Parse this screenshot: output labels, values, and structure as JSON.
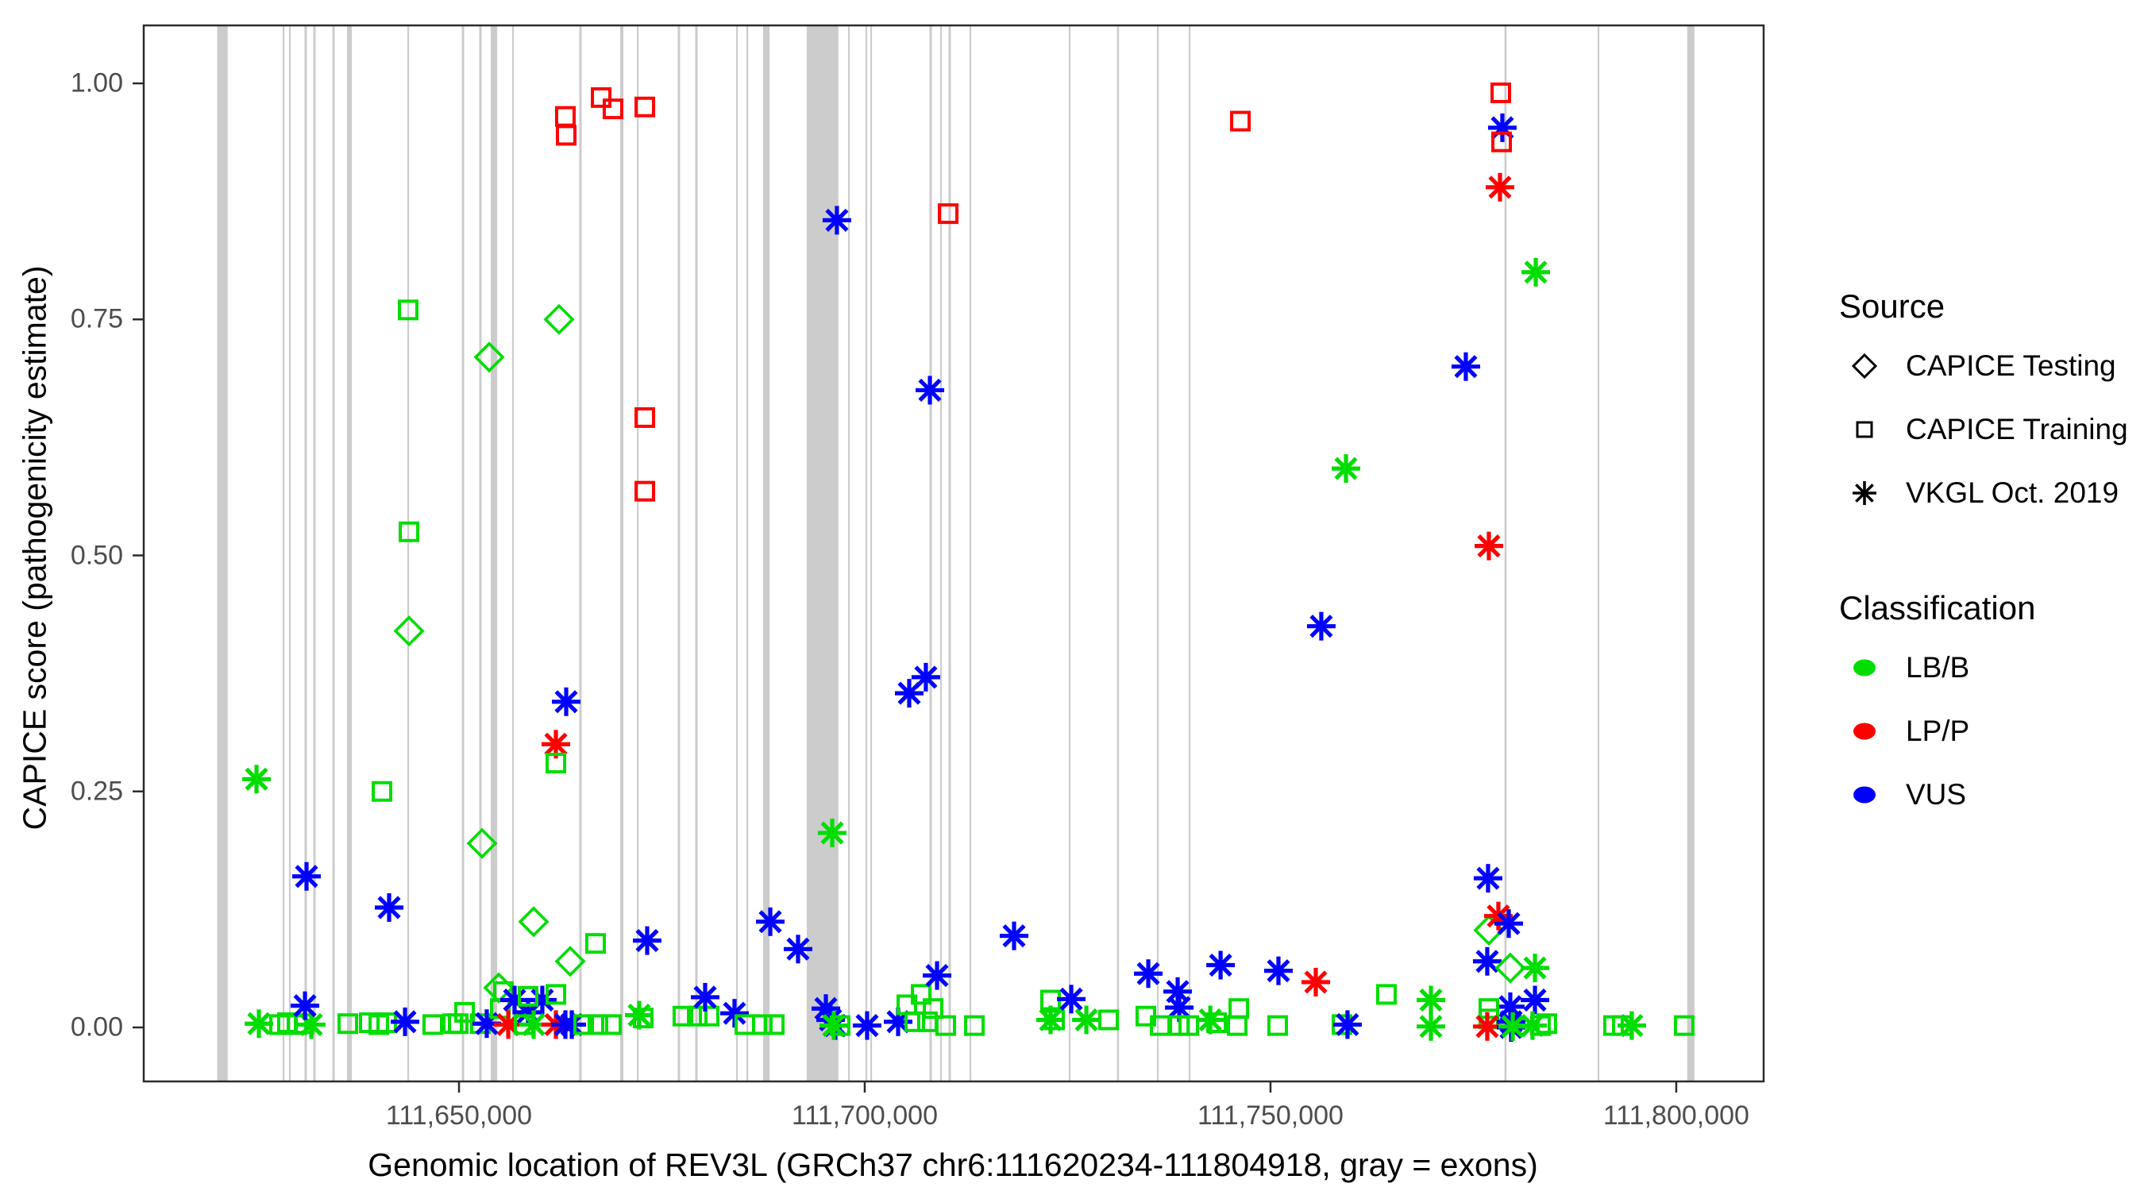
{
  "chart_data": {
    "type": "scatter",
    "title": "",
    "xlabel": "Genomic location of REV3L (GRCh37 chr6:111620234-111804918, gray = exons)",
    "ylabel": "CAPICE score (pathogenicity estimate)",
    "xlim": [
      111611150,
      111810770
    ],
    "ylim": [
      0.0,
      1.0
    ],
    "grid": false,
    "legend_position": "right",
    "gene": {
      "name": "REV3L",
      "assembly": "GRCh37",
      "chrom": "chr6",
      "start": 111620234,
      "end": 111804918
    },
    "x_ticks": [
      {
        "pos": 111650000,
        "label": "111,650,000"
      },
      {
        "pos": 111700000,
        "label": "111,700,000"
      },
      {
        "pos": 111750000,
        "label": "111,750,000"
      },
      {
        "pos": 111800000,
        "label": "111,800,000"
      }
    ],
    "y_ticks": [
      {
        "value": 0.0,
        "label": "0.00"
      },
      {
        "value": 0.25,
        "label": "0.25"
      },
      {
        "value": 0.5,
        "label": "0.50"
      },
      {
        "value": 0.75,
        "label": "0.75"
      },
      {
        "value": 1.0,
        "label": "1.00"
      }
    ],
    "colors": {
      "LB/B": "#00DD00",
      "LP/P": "#FF0000",
      "VUS": "#0000FF"
    },
    "exon_color": "#cccccc",
    "point_format": [
      "genomic_position",
      "capice_score",
      "source_code",
      "classification_code"
    ],
    "codes": {
      "d": "CAPICE Testing",
      "s": "CAPICE Training",
      "a": "VKGL Oct. 2019",
      "g": "LB/B",
      "r": "LP/P",
      "b": "VUS"
    },
    "exons": [
      [
        111620850,
        1300
      ],
      [
        111628370,
        200
      ],
      [
        111629150,
        200
      ],
      [
        111631110,
        300
      ],
      [
        111632190,
        300
      ],
      [
        111634540,
        300
      ],
      [
        111636500,
        600
      ],
      [
        111643740,
        200
      ],
      [
        111650490,
        300
      ],
      [
        111652640,
        300
      ],
      [
        111654310,
        800
      ],
      [
        111656650,
        200
      ],
      [
        111664970,
        300
      ],
      [
        111670060,
        400
      ],
      [
        111672020,
        200
      ],
      [
        111677100,
        300
      ],
      [
        111679260,
        300
      ],
      [
        111684250,
        200
      ],
      [
        111685520,
        200
      ],
      [
        111687870,
        800
      ],
      [
        111694800,
        3900
      ],
      [
        111698040,
        200
      ],
      [
        111700190,
        200
      ],
      [
        111700780,
        200
      ],
      [
        111708120,
        300
      ],
      [
        111709390,
        200
      ],
      [
        111710470,
        300
      ],
      [
        111713010,
        200
      ],
      [
        111725240,
        200
      ],
      [
        111731210,
        250
      ],
      [
        111736110,
        200
      ],
      [
        111740020,
        200
      ],
      [
        111778960,
        250
      ],
      [
        111790410,
        200
      ],
      [
        111801800,
        900
      ]
    ],
    "points": [
      [
        111625050,
        0.263,
        "a",
        "g"
      ],
      [
        111625340,
        0.004,
        "a",
        "g"
      ],
      [
        111627890,
        0.003,
        "s",
        "g"
      ],
      [
        111628860,
        0.005,
        "s",
        "g"
      ],
      [
        111630040,
        0.003,
        "s",
        "g"
      ],
      [
        111630920,
        0.004,
        "s",
        "g"
      ],
      [
        111631800,
        0.003,
        "a",
        "g"
      ],
      [
        111631020,
        0.023,
        "a",
        "b"
      ],
      [
        111631210,
        0.16,
        "a",
        "b"
      ],
      [
        111636300,
        0.004,
        "s",
        "g"
      ],
      [
        111638940,
        0.005,
        "s",
        "g"
      ],
      [
        111640120,
        0.003,
        "s",
        "g"
      ],
      [
        111641100,
        0.005,
        "s",
        "g"
      ],
      [
        111640510,
        0.25,
        "s",
        "g"
      ],
      [
        111641390,
        0.127,
        "a",
        "b"
      ],
      [
        111643350,
        0.006,
        "a",
        "b"
      ],
      [
        111643740,
        0.76,
        "s",
        "g"
      ],
      [
        111643840,
        0.525,
        "s",
        "g"
      ],
      [
        111643840,
        0.42,
        "d",
        "g"
      ],
      [
        111646770,
        0.003,
        "s",
        "g"
      ],
      [
        111649220,
        0.004,
        "s",
        "g"
      ],
      [
        111649900,
        0.004,
        "s",
        "g"
      ],
      [
        111650690,
        0.016,
        "s",
        "g"
      ],
      [
        111652640,
        0.004,
        "s",
        "g"
      ],
      [
        111653420,
        0.004,
        "a",
        "b"
      ],
      [
        111652840,
        0.195,
        "d",
        "g"
      ],
      [
        111653720,
        0.71,
        "d",
        "g"
      ],
      [
        111654890,
        0.042,
        "d",
        "g"
      ],
      [
        111655480,
        0.038,
        "s",
        "g"
      ],
      [
        111655090,
        0.02,
        "s",
        "g"
      ],
      [
        111656850,
        0.029,
        "a",
        "b"
      ],
      [
        111658510,
        0.016,
        "a",
        "b"
      ],
      [
        111660270,
        0.029,
        "a",
        "b"
      ],
      [
        111658510,
        0.033,
        "s",
        "g"
      ],
      [
        111661940,
        0.035,
        "s",
        "g"
      ],
      [
        111656070,
        0.003,
        "a",
        "r"
      ],
      [
        111658020,
        0.003,
        "s",
        "g"
      ],
      [
        111659200,
        0.003,
        "a",
        "g"
      ],
      [
        111661940,
        0.003,
        "a",
        "r"
      ],
      [
        111663110,
        0.003,
        "a",
        "b"
      ],
      [
        111663900,
        0.003,
        "a",
        "b"
      ],
      [
        111659200,
        0.112,
        "d",
        "g"
      ],
      [
        111661940,
        0.3,
        "a",
        "r"
      ],
      [
        111661940,
        0.28,
        "s",
        "g"
      ],
      [
        111662330,
        0.75,
        "d",
        "g"
      ],
      [
        111663110,
        0.965,
        "s",
        "r"
      ],
      [
        111663210,
        0.945,
        "s",
        "r"
      ],
      [
        111663210,
        0.345,
        "a",
        "b"
      ],
      [
        111663700,
        0.07,
        "d",
        "g"
      ],
      [
        111666830,
        0.089,
        "s",
        "g"
      ],
      [
        111665360,
        0.003,
        "s",
        "g"
      ],
      [
        111667120,
        0.003,
        "s",
        "g"
      ],
      [
        111668790,
        0.003,
        "s",
        "g"
      ],
      [
        111667520,
        0.985,
        "s",
        "r"
      ],
      [
        111668980,
        0.973,
        "s",
        "r"
      ],
      [
        111672900,
        0.975,
        "s",
        "r"
      ],
      [
        111672900,
        0.646,
        "s",
        "r"
      ],
      [
        111672900,
        0.568,
        "s",
        "r"
      ],
      [
        111673190,
        0.092,
        "a",
        "b"
      ],
      [
        111672210,
        0.013,
        "a",
        "g"
      ],
      [
        111672700,
        0.01,
        "s",
        "g"
      ],
      [
        111677590,
        0.012,
        "s",
        "g"
      ],
      [
        111679360,
        0.012,
        "s",
        "g"
      ],
      [
        111680820,
        0.012,
        "s",
        "g"
      ],
      [
        111680330,
        0.032,
        "a",
        "b"
      ],
      [
        111683950,
        0.015,
        "a",
        "b"
      ],
      [
        111685230,
        0.003,
        "s",
        "g"
      ],
      [
        111687380,
        0.003,
        "s",
        "g"
      ],
      [
        111688850,
        0.003,
        "s",
        "g"
      ],
      [
        111688360,
        0.112,
        "a",
        "b"
      ],
      [
        111691780,
        0.083,
        "a",
        "b"
      ],
      [
        111695990,
        0.206,
        "a",
        "g"
      ],
      [
        111696570,
        0.855,
        "a",
        "b"
      ],
      [
        111695210,
        0.02,
        "a",
        "b"
      ],
      [
        111695790,
        0.008,
        "a",
        "b"
      ],
      [
        111696380,
        0.002,
        "a",
        "b"
      ],
      [
        111696180,
        0.002,
        "a",
        "g"
      ],
      [
        111696960,
        0.002,
        "s",
        "g"
      ],
      [
        111700290,
        0.002,
        "a",
        "b"
      ],
      [
        111704110,
        0.006,
        "a",
        "b"
      ],
      [
        111705190,
        0.024,
        "s",
        "g"
      ],
      [
        111706170,
        0.006,
        "s",
        "g"
      ],
      [
        111706950,
        0.035,
        "s",
        "g"
      ],
      [
        111707730,
        0.006,
        "s",
        "g"
      ],
      [
        111708420,
        0.02,
        "s",
        "g"
      ],
      [
        111709980,
        0.002,
        "s",
        "g"
      ],
      [
        111713510,
        0.002,
        "s",
        "g"
      ],
      [
        111705480,
        0.354,
        "a",
        "b"
      ],
      [
        111707530,
        0.371,
        "a",
        "b"
      ],
      [
        111708030,
        0.675,
        "a",
        "b"
      ],
      [
        111710280,
        0.862,
        "s",
        "r"
      ],
      [
        111708910,
        0.055,
        "a",
        "b"
      ],
      [
        111718400,
        0.097,
        "a",
        "b"
      ],
      [
        111722900,
        0.029,
        "s",
        "g"
      ],
      [
        111722900,
        0.008,
        "a",
        "g"
      ],
      [
        111723390,
        0.008,
        "s",
        "g"
      ],
      [
        111725450,
        0.03,
        "a",
        "b"
      ],
      [
        111727310,
        0.008,
        "a",
        "g"
      ],
      [
        111730050,
        0.008,
        "s",
        "g"
      ],
      [
        111734940,
        0.057,
        "a",
        "b"
      ],
      [
        111734640,
        0.012,
        "s",
        "g"
      ],
      [
        111738560,
        0.038,
        "a",
        "b"
      ],
      [
        111738760,
        0.021,
        "a",
        "b"
      ],
      [
        111736410,
        0.002,
        "s",
        "g"
      ],
      [
        111738760,
        0.002,
        "s",
        "g"
      ],
      [
        111739930,
        0.002,
        "s",
        "g"
      ],
      [
        111742580,
        0.008,
        "a",
        "g"
      ],
      [
        111743360,
        0.005,
        "s",
        "g"
      ],
      [
        111743850,
        0.066,
        "a",
        "b"
      ],
      [
        111746290,
        0.96,
        "s",
        "r"
      ],
      [
        111746100,
        0.02,
        "s",
        "g"
      ],
      [
        111745900,
        0.002,
        "s",
        "g"
      ],
      [
        111750880,
        0.002,
        "s",
        "g"
      ],
      [
        111750980,
        0.06,
        "a",
        "b"
      ],
      [
        111755580,
        0.048,
        "a",
        "r"
      ],
      [
        111756260,
        0.425,
        "a",
        "b"
      ],
      [
        111758810,
        0.003,
        "s",
        "g"
      ],
      [
        111759490,
        0.003,
        "a",
        "b"
      ],
      [
        111759300,
        0.592,
        "a",
        "g"
      ],
      [
        111764290,
        0.035,
        "s",
        "g"
      ],
      [
        111769770,
        0.029,
        "a",
        "g"
      ],
      [
        111769770,
        0.001,
        "a",
        "g"
      ],
      [
        111774070,
        0.7,
        "a",
        "b"
      ],
      [
        111778380,
        0.99,
        "s",
        "r"
      ],
      [
        111778570,
        0.953,
        "a",
        "b"
      ],
      [
        111778480,
        0.938,
        "s",
        "r"
      ],
      [
        111778280,
        0.89,
        "a",
        "r"
      ],
      [
        111776910,
        0.51,
        "a",
        "r"
      ],
      [
        111776810,
        0.158,
        "a",
        "b"
      ],
      [
        111776910,
        0.103,
        "d",
        "g"
      ],
      [
        111778080,
        0.118,
        "a",
        "r"
      ],
      [
        111779360,
        0.11,
        "a",
        "b"
      ],
      [
        111776710,
        0.07,
        "a",
        "b"
      ],
      [
        111779550,
        0.063,
        "d",
        "g"
      ],
      [
        111782590,
        0.063,
        "a",
        "g"
      ],
      [
        111782590,
        0.029,
        "a",
        "b"
      ],
      [
        111779550,
        0.022,
        "a",
        "b"
      ],
      [
        111776910,
        0.02,
        "s",
        "g"
      ],
      [
        111776910,
        0.009,
        "s",
        "g"
      ],
      [
        111776710,
        0.001,
        "a",
        "r"
      ],
      [
        111779650,
        0.006,
        "a",
        "b"
      ],
      [
        111779650,
        0.0,
        "a",
        "b"
      ],
      [
        111779850,
        0.001,
        "a",
        "g"
      ],
      [
        111782290,
        0.002,
        "a",
        "g"
      ],
      [
        111783270,
        0.002,
        "s",
        "g"
      ],
      [
        111782690,
        0.8,
        "a",
        "g"
      ],
      [
        111784050,
        0.004,
        "s",
        "g"
      ],
      [
        111792270,
        0.002,
        "s",
        "g"
      ],
      [
        111793350,
        0.002,
        "s",
        "g"
      ],
      [
        111794520,
        0.002,
        "a",
        "g"
      ],
      [
        111800980,
        0.002,
        "s",
        "g"
      ]
    ]
  },
  "legend": {
    "source_title": "Source",
    "source_items": [
      {
        "label": "CAPICE Testing",
        "shape": "diamond"
      },
      {
        "label": "CAPICE Training",
        "shape": "square"
      },
      {
        "label": "VKGL Oct. 2019",
        "shape": "asterisk"
      }
    ],
    "class_title": "Classification",
    "class_items": [
      {
        "label": "LB/B",
        "color": "#00DD00"
      },
      {
        "label": "LP/P",
        "color": "#FF0000"
      },
      {
        "label": "VUS",
        "color": "#0000FF"
      }
    ]
  }
}
